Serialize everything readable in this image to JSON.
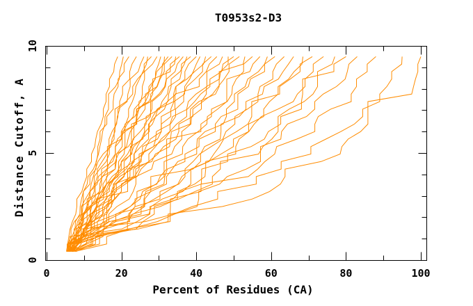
{
  "figure": {
    "background_color": "#ffffff",
    "frame_color": "#000000",
    "text_color": "#000000"
  },
  "chart_data": {
    "type": "line",
    "title": "T0953s2-D3",
    "xlabel": "Percent of Residues (CA)",
    "ylabel": "Distance Cutoff, A",
    "xlim": [
      0,
      100
    ],
    "ylim": [
      0,
      10
    ],
    "grid": "off",
    "legend": "none",
    "line_color": "#ff8c00",
    "x_ticks_major": [
      0,
      20,
      40,
      60,
      80,
      100
    ],
    "x_tick_labels": [
      "0",
      "20",
      "40",
      "60",
      "80",
      "100"
    ],
    "x_ticks_minor": [
      10,
      30,
      50,
      70,
      90
    ],
    "y_ticks_major": [
      0,
      5,
      10
    ],
    "y_tick_labels": [
      "0",
      "5",
      "10"
    ],
    "y_ticks_minor": [
      1,
      2,
      3,
      4,
      6,
      7,
      8,
      9
    ],
    "n_models": 42,
    "series_y_waypoints": [
      0.4,
      2.5,
      5.0,
      7.5,
      9.5
    ],
    "series": [
      [
        5.3,
        8.3,
        12.2,
        15.8,
        19.0
      ],
      [
        6.1,
        9.8,
        13.9,
        17.6,
        20.5
      ],
      [
        5.6,
        8.9,
        13.5,
        18.1,
        22.0
      ],
      [
        6.8,
        10.9,
        15.7,
        20.2,
        24.0
      ],
      [
        5.9,
        10.3,
        16.0,
        21.4,
        26.0
      ],
      [
        7.2,
        12.7,
        18.3,
        23.2,
        27.0
      ],
      [
        5.4,
        9.5,
        15.6,
        22.1,
        28.0
      ],
      [
        6.4,
        12.2,
        18.6,
        24.6,
        29.5
      ],
      [
        7.0,
        14.1,
        20.6,
        26.3,
        30.5
      ],
      [
        5.8,
        10.9,
        17.9,
        25.1,
        31.5
      ],
      [
        6.6,
        13.3,
        20.6,
        27.3,
        32.5
      ],
      [
        5.5,
        11.7,
        19.5,
        27.1,
        33.5
      ],
      [
        7.3,
        15.7,
        23.3,
        29.9,
        34.5
      ],
      [
        6.0,
        11.3,
        19.6,
        27.8,
        35.5
      ],
      [
        5.7,
        13.1,
        21.7,
        29.7,
        36.5
      ],
      [
        6.9,
        15.5,
        24.0,
        31.7,
        37.5
      ],
      [
        6.2,
        13.0,
        22.0,
        30.7,
        38.5
      ],
      [
        5.5,
        14.1,
        23.8,
        32.8,
        40.0
      ],
      [
        7.1,
        17.3,
        26.8,
        35.2,
        41.0
      ],
      [
        5.9,
        12.9,
        22.7,
        33.0,
        42.5
      ],
      [
        6.5,
        16.3,
        26.8,
        36.5,
        44.0
      ],
      [
        5.6,
        14.4,
        25.6,
        36.3,
        45.5
      ],
      [
        6.3,
        17.7,
        29.1,
        39.3,
        47.0
      ],
      [
        7.4,
        20.6,
        32.1,
        41.9,
        48.5
      ],
      [
        5.8,
        14.6,
        27.0,
        39.4,
        50.0
      ],
      [
        6.7,
        18.3,
        30.9,
        42.5,
        51.5
      ],
      [
        5.4,
        16.3,
        29.7,
        42.5,
        53.0
      ],
      [
        6.1,
        21.7,
        35.4,
        47.2,
        55.0
      ],
      [
        7.2,
        21.1,
        35.6,
        48.0,
        57.0
      ],
      [
        5.7,
        23.8,
        38.7,
        51.0,
        59.0
      ],
      [
        6.8,
        23.1,
        38.2,
        51.8,
        61.0
      ],
      [
        5.9,
        26.6,
        42.8,
        55.4,
        63.5
      ],
      [
        6.4,
        25.5,
        42.2,
        56.5,
        66.0
      ],
      [
        7.0,
        29.1,
        47.0,
        60.5,
        68.5
      ],
      [
        5.6,
        25.2,
        44.2,
        59.9,
        71.0
      ],
      [
        6.6,
        29.5,
        49.1,
        64.6,
        74.0
      ],
      [
        7.8,
        34.1,
        54.2,
        68.7,
        77.0
      ],
      [
        6.2,
        30.6,
        52.0,
        68.9,
        80.0
      ],
      [
        7.5,
        35.4,
        57.3,
        73.9,
        83.0
      ],
      [
        6.9,
        37.7,
        62.0,
        79.9,
        88.0
      ],
      [
        7.6,
        42.6,
        70.5,
        88.9,
        95.0
      ],
      [
        8.0,
        49.4,
        77.0,
        97.2,
        100.0
      ]
    ]
  }
}
